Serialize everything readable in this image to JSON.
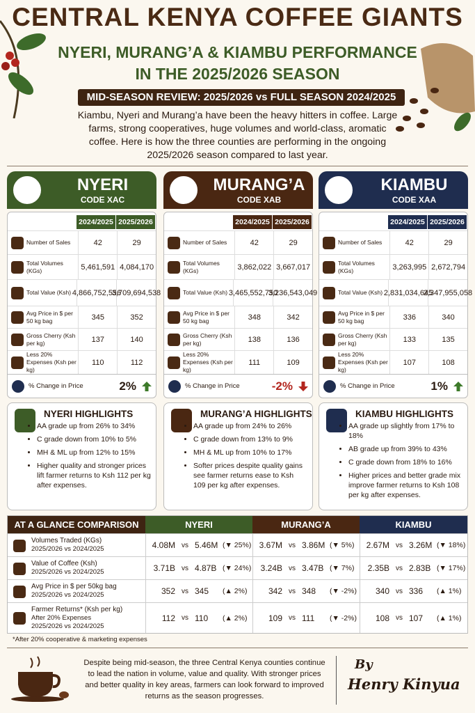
{
  "header": {
    "title": "CENTRAL KENYA COFFEE GIANTS",
    "subtitle": [
      "NYERI, MURANG’A & KIAMBU PERFORMANCE",
      "IN THE 2025/2026 SEASON"
    ],
    "banner": "MID-SEASON REVIEW: 2025/2026 vs FULL SEASON 2024/2025",
    "intro": "Kiambu, Nyeri and Murang’a have been the heavy hitters in coffee. Large farms, strong cooperatives, huge volumes and world-class, aromatic coffee. Here is how the three counties are performing in the ongoing 2025/2026 season compared to last year."
  },
  "seasons": [
    "2024/2025",
    "2025/2026"
  ],
  "row_labels": [
    "Number of Sales",
    "Total Volumes (KGs)",
    "Total Value (Ksh)",
    "Avg Price in $ per 50 kg bag",
    "Gross Cherry (Ksh per kg)",
    "Less 20% Expenses (Ksh per kg)"
  ],
  "change_label": "% Change in Price",
  "counties": [
    {
      "name": "NYERI",
      "code": "CODE XAC",
      "color": "#3d5c27",
      "rows": [
        [
          "42",
          "29"
        ],
        [
          "5,461,591",
          "4,084,170"
        ],
        [
          "4,866,752,556",
          "3,709,694,538"
        ],
        [
          "345",
          "352"
        ],
        [
          "137",
          "140"
        ],
        [
          "110",
          "112"
        ]
      ],
      "change": "2%",
      "trend": "up",
      "highlights_title": "NYERI HIGHLIGHTS",
      "highlights": [
        "AA grade up from 26% to 34%",
        "C grade down from 10% to 5%",
        "MH & ML up from 12% to 15%",
        "Higher quality and stronger prices lift farmer returns to Ksh 112 per kg after expenses."
      ]
    },
    {
      "name": "MURANG’A",
      "code": "CODE XAB",
      "color": "#4a2712",
      "rows": [
        [
          "42",
          "29"
        ],
        [
          "3,862,022",
          "3,667,017"
        ],
        [
          "3,465,552,750",
          "3,236,543,049"
        ],
        [
          "348",
          "342"
        ],
        [
          "138",
          "136"
        ],
        [
          "111",
          "109"
        ]
      ],
      "change": "-2%",
      "trend": "down",
      "highlights_title": "MURANG’A HIGHLIGHTS",
      "highlights": [
        "AA grade up from 24% to 26%",
        "C grade down from 13% to 9%",
        "MH & ML up from 10% to 17%",
        "Softer prices despite quality gains see farmer returns ease to Ksh 109 per kg after expenses."
      ]
    },
    {
      "name": "KIAMBU",
      "code": "CODE XAA",
      "color": "#1f2d4f",
      "rows": [
        [
          "42",
          "29"
        ],
        [
          "3,263,995",
          "2,672,794"
        ],
        [
          "2,831,034,645",
          "2,347,955,058"
        ],
        [
          "336",
          "340"
        ],
        [
          "133",
          "135"
        ],
        [
          "107",
          "108"
        ]
      ],
      "change": "1%",
      "trend": "up",
      "highlights_title": "KIAMBU HIGHLIGHTS",
      "highlights": [
        "AA grade up slightly from 17% to 18%",
        "AB grade up from 39% to 43%",
        "C grade down from 18% to 16%",
        "Higher prices and better grade mix improve farmer returns to Ksh 108 per kg after expenses."
      ]
    }
  ],
  "glance": {
    "title": "AT A GLANCE COMPARISON",
    "vs": "vs",
    "rows": [
      {
        "label": [
          "Volumes Traded (KGs)",
          "2025/2026 vs 2024/2025"
        ],
        "cells": [
          [
            "4.08M",
            "5.46M",
            "(▼ 25%)"
          ],
          [
            "3.67M",
            "3.86M",
            "(▼ 5%)"
          ],
          [
            "2.67M",
            "3.26M",
            "(▼ 18%)"
          ]
        ]
      },
      {
        "label": [
          "Value of Coffee (Ksh)",
          "2025/2026 vs 2024/2025"
        ],
        "cells": [
          [
            "3.71B",
            "4.87B",
            "(▼ 24%)"
          ],
          [
            "3.24B",
            "3.47B",
            "(▼ 7%)"
          ],
          [
            "2.35B",
            "2.83B",
            "(▼ 17%)"
          ]
        ]
      },
      {
        "label": [
          "Avg Price in $ per 50kg bag",
          "2025/2026 vs 2024/2025"
        ],
        "cells": [
          [
            "352",
            "345",
            "(▲ 2%)"
          ],
          [
            "342",
            "348",
            "(▼ -2%)"
          ],
          [
            "340",
            "336",
            "(▲ 1%)"
          ]
        ]
      },
      {
        "label": [
          "Farmer Returns* (Ksh per kg)",
          "After 20% Expenses",
          "2025/2026 vs 2024/2025"
        ],
        "cells": [
          [
            "112",
            "110",
            "(▲ 2%)"
          ],
          [
            "109",
            "111",
            "(▼ -2%)"
          ],
          [
            "108",
            "107",
            "(▲ 1%)"
          ]
        ]
      }
    ]
  },
  "footnote": "*After 20% cooperative & marketing expenses",
  "footer": {
    "text": "Despite being mid-season, the three Central Kenya counties continue to lead the nation in volume, value and quality. With stronger prices and better quality in key areas, farmers can look forward to improved returns as the season progresses.",
    "by": "By",
    "author": "Henry Kinyua"
  }
}
